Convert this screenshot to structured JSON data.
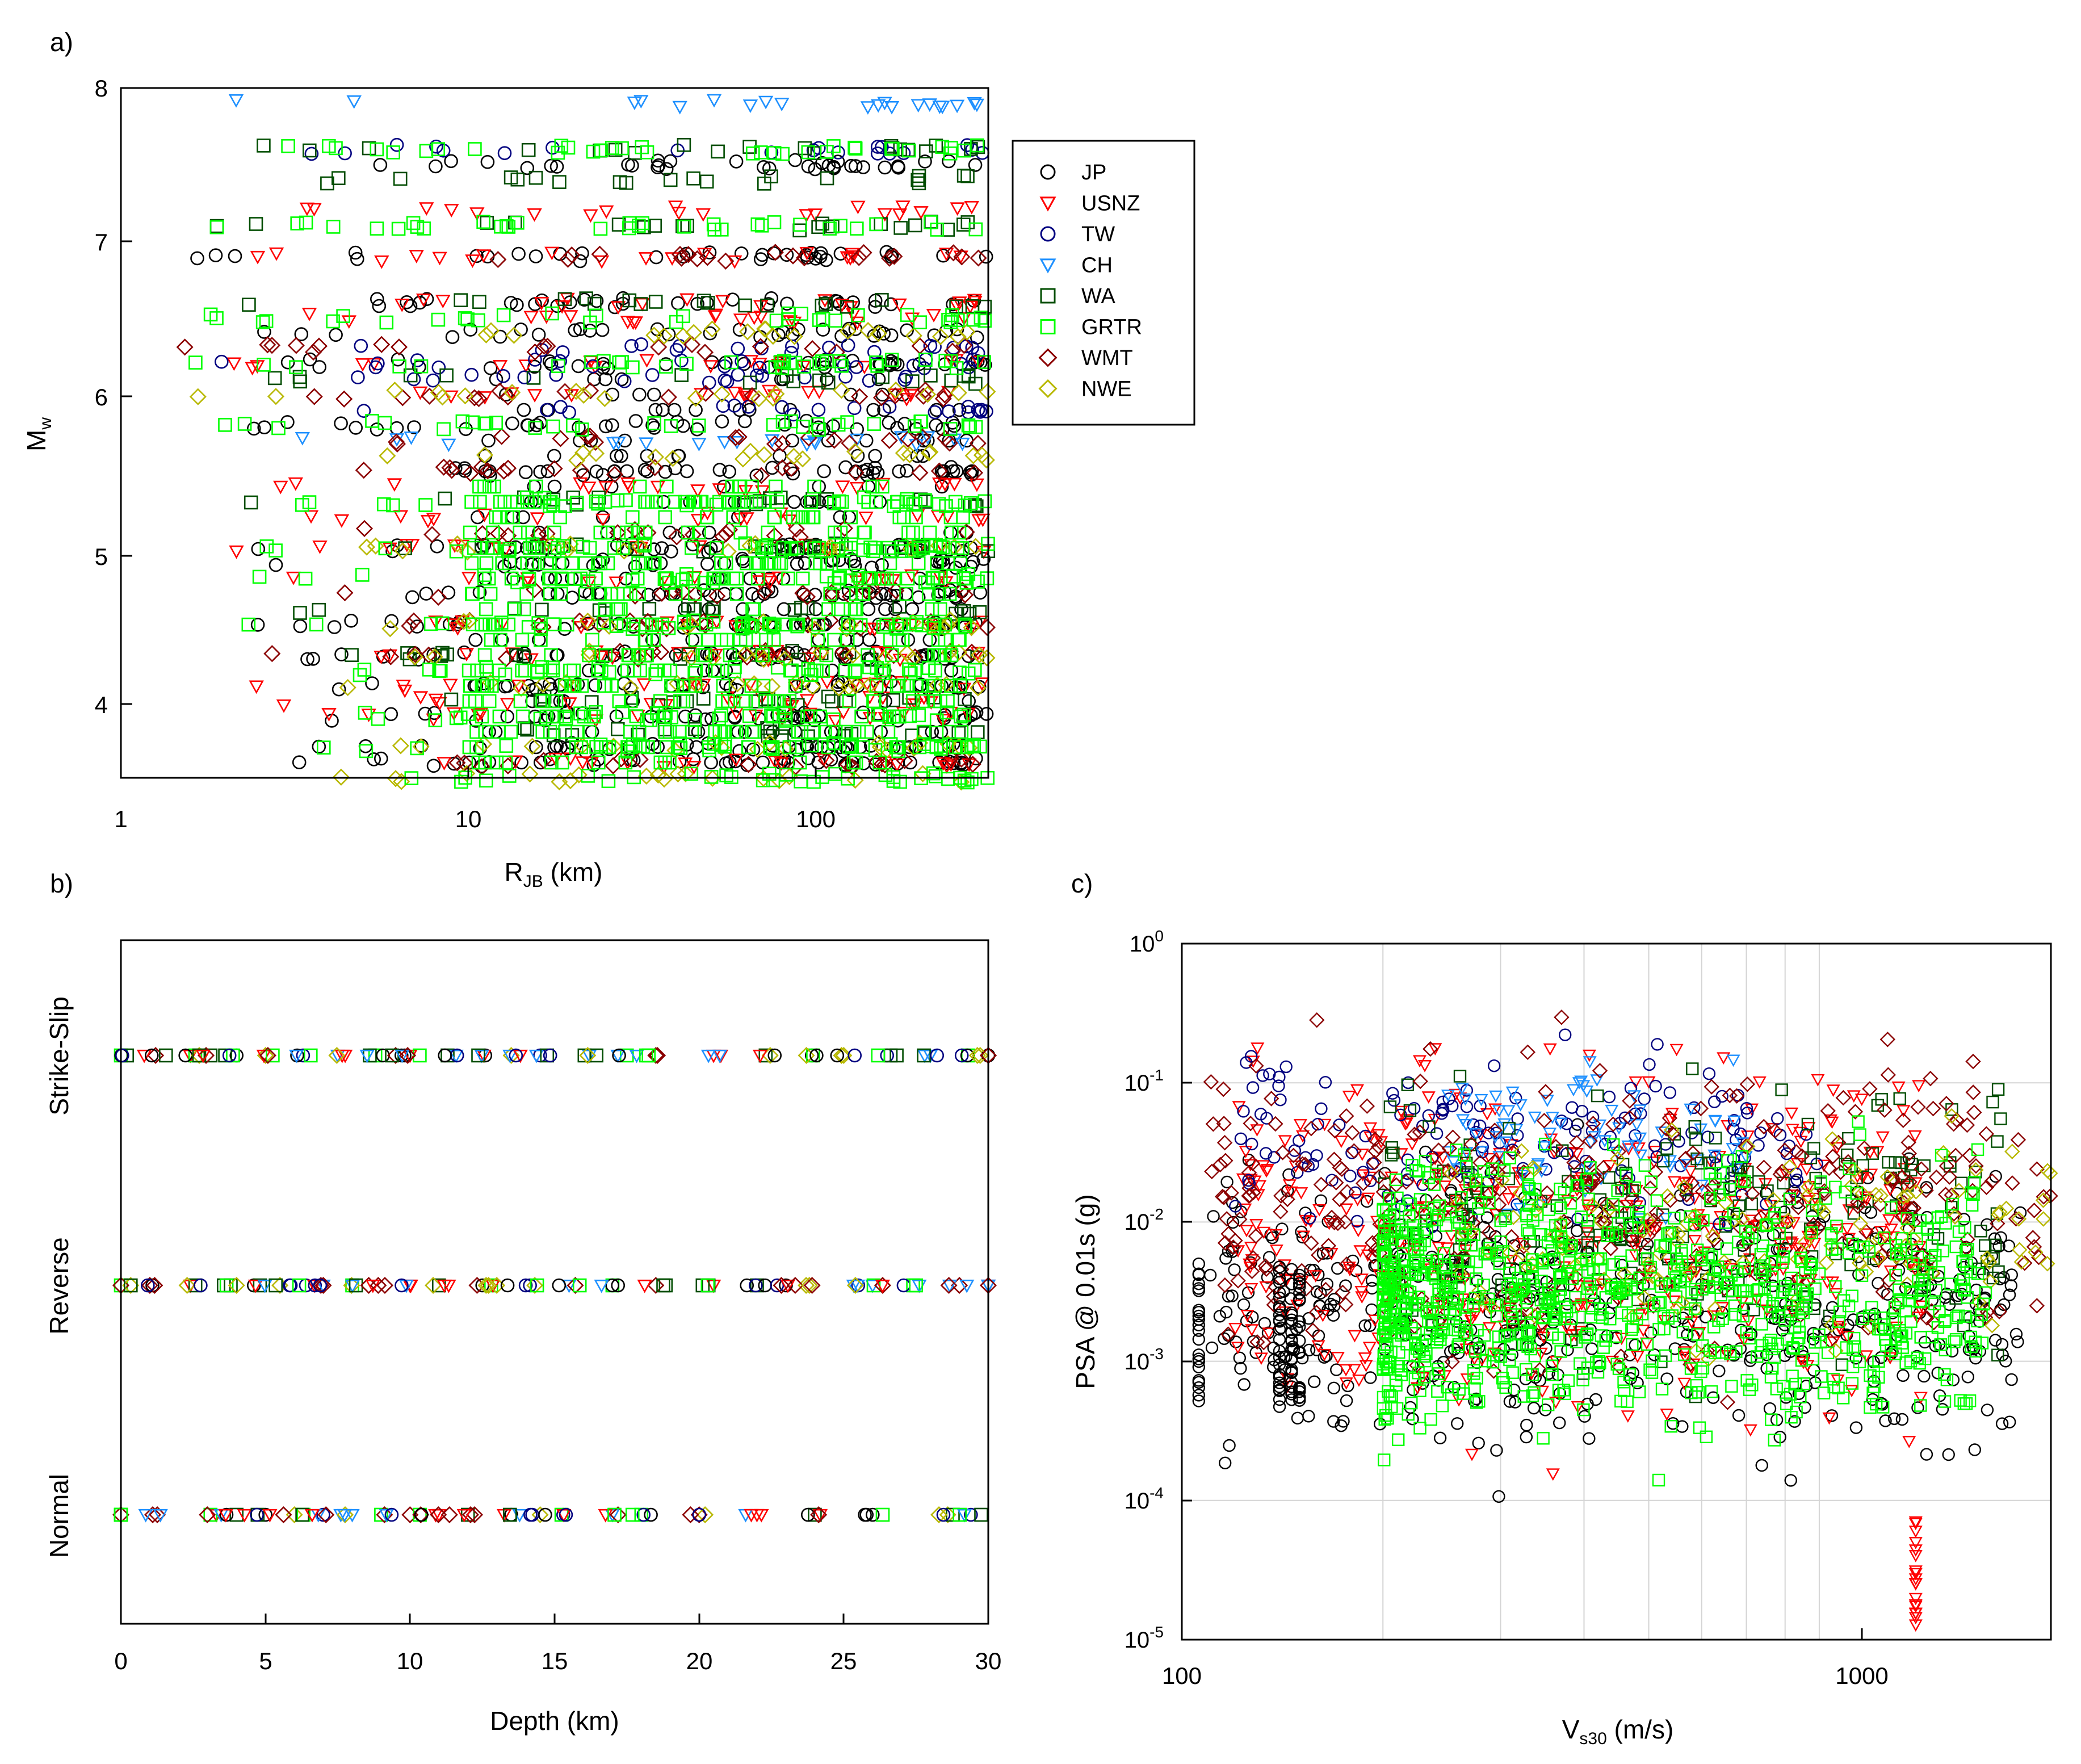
{
  "series_styles": [
    {
      "name": "JP",
      "marker": "circle",
      "color": "#000000"
    },
    {
      "name": "USNZ",
      "marker": "triangle",
      "color": "#ff0000"
    },
    {
      "name": "TW",
      "marker": "circle",
      "color": "#00007f"
    },
    {
      "name": "CH",
      "marker": "triangle",
      "color": "#1e90ff"
    },
    {
      "name": "WA",
      "marker": "square",
      "color": "#004d00"
    },
    {
      "name": "GRTR",
      "marker": "square",
      "color": "#00ff00"
    },
    {
      "name": "WMT",
      "marker": "diamond",
      "color": "#8b0000"
    },
    {
      "name": "NWE",
      "marker": "diamond",
      "color": "#b8b800"
    }
  ],
  "chart_data": [
    {
      "panel_label": "a)",
      "type": "scatter",
      "xlabel": "R",
      "xlabel_sub": "JB",
      "xlabel_suffix": " (km)",
      "ylabel": "M",
      "ylabel_sub": "w",
      "x_scale": "log",
      "xlim": [
        1,
        320
      ],
      "ylim": [
        3.5,
        8
      ],
      "x_ticks": [
        "1",
        "10",
        "100"
      ],
      "y_ticks": [
        "4",
        "5",
        "6",
        "7",
        "8"
      ],
      "grid": false,
      "legend_position": "right",
      "legend": [
        "JP",
        "USNZ",
        "TW",
        "CH",
        "WA",
        "GRTR",
        "WMT",
        "NWE"
      ],
      "magnitude_levels": {
        "JP": [
          7.5,
          6.9,
          6.6,
          6.4,
          6.2,
          5.8,
          5.5,
          5.0,
          4.9,
          4.7,
          4.5,
          4.3,
          4.1,
          3.9,
          3.7,
          3.6
        ],
        "USNZ": [
          7.2,
          6.9,
          6.6,
          6.5,
          6.2,
          6.0,
          5.4,
          5.2,
          5.0,
          4.8,
          4.5,
          4.3,
          4.1,
          4.0,
          3.9,
          3.6
        ],
        "TW": [
          7.6,
          6.3,
          6.2,
          6.1,
          5.9
        ],
        "CH": [
          7.9,
          5.7
        ],
        "WA": [
          7.6,
          7.4,
          7.1,
          6.6,
          6.1,
          5.3,
          5.0,
          4.6,
          4.3,
          4.0,
          3.8
        ],
        "GRTR": [
          7.6,
          7.1,
          6.5,
          6.2,
          5.8,
          5.3,
          5.0,
          4.8,
          4.5,
          4.2,
          3.9,
          3.7,
          3.5
        ],
        "WMT": [
          6.9,
          6.3,
          6.0,
          5.7,
          5.5,
          5.1,
          4.7,
          4.5,
          4.3,
          3.6
        ],
        "NWE": [
          6.4,
          6.0,
          5.6,
          5.0,
          4.5,
          4.3,
          4.1,
          3.7,
          3.5
        ]
      }
    },
    {
      "panel_label": "b)",
      "type": "scatter",
      "xlabel": "Depth (km)",
      "ylabel": "",
      "xlim": [
        0,
        30
      ],
      "x_ticks": [
        "0",
        "5",
        "10",
        "15",
        "20",
        "25",
        "30"
      ],
      "categories": [
        "Strike-Slip",
        "Reverse",
        "Normal"
      ],
      "depths_km": {
        "Strike-Slip": [
          0,
          1.2,
          2.4,
          3.1,
          4.0,
          5.0,
          6.3,
          7.5,
          8.8,
          9.5,
          10.0,
          11.3,
          12.6,
          13.5,
          14.5,
          16.2,
          17.5,
          18.5,
          20.5,
          22.3,
          23.9,
          25.0,
          26.5,
          28.0,
          29.3,
          30.0
        ],
        "Reverse": [
          0,
          1.0,
          2.4,
          3.8,
          4.6,
          5.5,
          6.4,
          7.0,
          8.0,
          8.9,
          10.0,
          11.0,
          12.5,
          13.0,
          14.0,
          15.5,
          17.0,
          18.5,
          20.5,
          22.0,
          23.0,
          23.7,
          25.5,
          26.0,
          27.4,
          29.0,
          30.0
        ],
        "Normal": [
          0,
          1.1,
          3.3,
          4.0,
          5.0,
          6.0,
          7.0,
          8.0,
          9.0,
          10.0,
          11.0,
          12.0,
          13.5,
          14.5,
          15.3,
          17.0,
          18.0,
          20.0,
          22.0,
          24.0,
          26.0,
          28.6,
          29.4
        ]
      }
    },
    {
      "panel_label": "c)",
      "type": "scatter",
      "xlabel": "V",
      "xlabel_sub": "s30",
      "xlabel_suffix": " (m/s)",
      "ylabel": "PSA @ 0.01s (g)",
      "x_scale": "log",
      "y_scale": "log",
      "xlim": [
        100,
        2000
      ],
      "ylim": [
        1e-05,
        1
      ],
      "x_ticks": [
        "100",
        "1000"
      ],
      "y_ticks": [
        {
          "base": "10",
          "exp": "-5"
        },
        {
          "base": "10",
          "exp": "-4"
        },
        {
          "base": "10",
          "exp": "-3"
        },
        {
          "base": "10",
          "exp": "-2"
        },
        {
          "base": "10",
          "exp": "-1"
        },
        {
          "base": "10",
          "exp": "0"
        }
      ],
      "grid": true
    }
  ]
}
